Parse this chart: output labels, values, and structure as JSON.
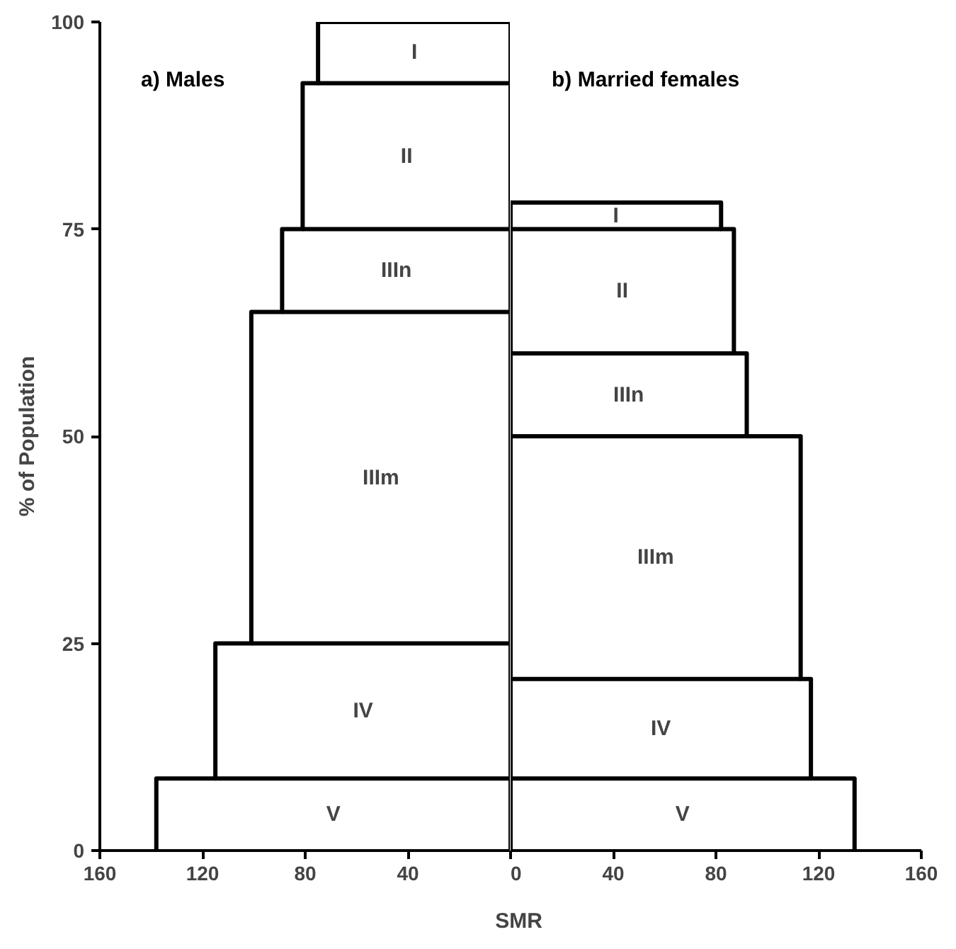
{
  "chart_data": [
    {
      "type": "line",
      "xlabel": "SMR",
      "ylabel": "% of Population",
      "marker": "none",
      "line_style": "solid",
      "xlim": [
        160,
        0
      ],
      "xticks": [
        160,
        120,
        80,
        40,
        {
          "value": 0,
          "label": null
        }
      ],
      "ylim": [
        0,
        100
      ],
      "yticks": [
        0,
        25,
        50,
        75,
        100
      ],
      "grid": false,
      "series": [
        {
          "name": "a) Males",
          "color": "#000000",
          "x": [
            138,
            138,
            115,
            115,
            101,
            101,
            89,
            89,
            81,
            81,
            75,
            75,
            0,
            0
          ],
          "values": [
            0,
            8.7,
            8.7,
            25,
            25,
            65,
            65,
            75,
            75,
            92.6,
            92.6,
            100,
            100,
            0
          ]
        },
        {
          "color": "#000000",
          "x": [
            0,
            115
          ],
          "values": [
            8.7,
            8.7
          ]
        },
        {
          "color": "#000000",
          "x": [
            0,
            101
          ],
          "values": [
            25,
            25
          ]
        },
        {
          "color": "#000000",
          "x": [
            0,
            89
          ],
          "values": [
            65,
            65
          ]
        },
        {
          "color": "#000000",
          "x": [
            0,
            81
          ],
          "values": [
            75,
            75
          ]
        },
        {
          "color": "#000000",
          "x": [
            0,
            75
          ],
          "values": [
            92.6,
            92.6
          ]
        }
      ],
      "annotations": [
        "V",
        "IV",
        "IIIm",
        "IIIn",
        "II",
        "I"
      ]
    },
    {
      "type": "line",
      "marker": "none",
      "line_style": "solid",
      "tick_labels": "x",
      "xlim": [
        0,
        160
      ],
      "xticks": [
        0,
        40,
        80,
        120,
        160
      ],
      "ylim": [
        0,
        100
      ],
      "yticks": [
        0,
        25,
        50,
        75,
        100
      ],
      "grid": false,
      "series": [
        {
          "name": "b) Married females",
          "color": "#000000",
          "x": [
            134,
            134,
            117,
            117,
            113,
            113,
            92,
            92,
            87,
            87,
            82,
            82,
            0,
            0
          ],
          "values": [
            0,
            8.7,
            8.7,
            20.7,
            20.7,
            50,
            50,
            60,
            60,
            75,
            75,
            78.2,
            78.2,
            0
          ]
        },
        {
          "color": "#000000",
          "x": [
            0,
            117
          ],
          "values": [
            8.7,
            8.7
          ]
        },
        {
          "color": "#000000",
          "x": [
            0,
            113
          ],
          "values": [
            20.7,
            20.7
          ]
        },
        {
          "color": "#000000",
          "x": [
            0,
            92
          ],
          "values": [
            50,
            50
          ]
        },
        {
          "color": "#000000",
          "x": [
            0,
            87
          ],
          "values": [
            60,
            60
          ]
        },
        {
          "color": "#000000",
          "x": [
            0,
            82
          ],
          "values": [
            75,
            75
          ]
        }
      ],
      "annotations": [
        "V",
        "IV",
        "IIIm",
        "IIIn",
        "II",
        "I"
      ]
    }
  ]
}
